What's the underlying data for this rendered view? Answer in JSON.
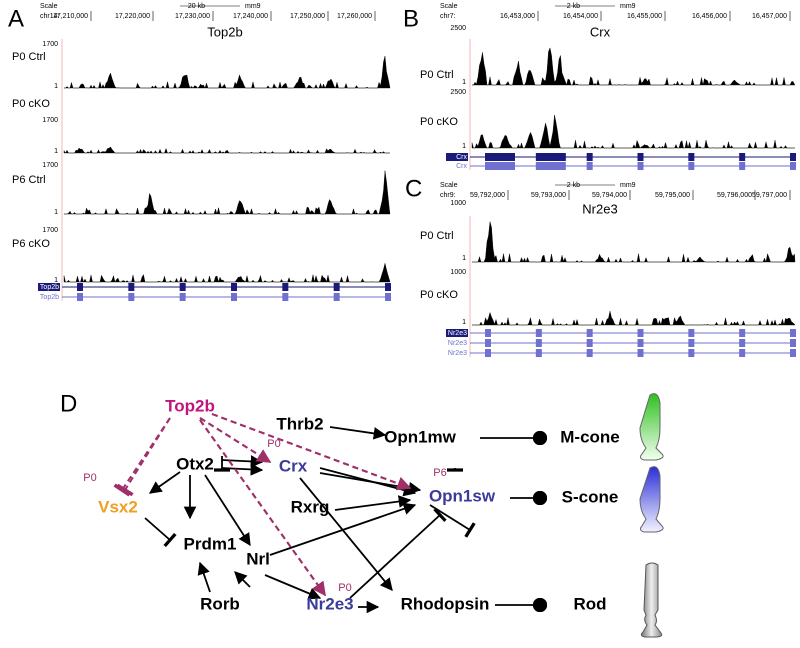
{
  "panels": [
    {
      "letter": "A",
      "scale": "Scale",
      "size": "20 kb",
      "assembly": "mm9",
      "chrom": "chr14:",
      "coords": [
        "17,210,000",
        "17,220,000",
        "17,230,000",
        "17,240,000",
        "17,250,000",
        "17,260,000"
      ],
      "title": "Top2b",
      "tracks": [
        {
          "name": "P0 Ctrl",
          "max": 1700,
          "min": 1
        },
        {
          "name": "P0 cKO",
          "max": 1700,
          "min": 1
        },
        {
          "name": "P6 Ctrl",
          "max": 1700,
          "min": 1
        },
        {
          "name": "P6 cKO",
          "max": 1700,
          "min": 1
        }
      ],
      "genes": [
        "Top2b",
        "Top2b"
      ]
    },
    {
      "letter": "B",
      "scale": "Scale",
      "size": "2 kb",
      "assembly": "mm9",
      "chrom": "chr7:",
      "coords": [
        "16,453,000",
        "16,454,000",
        "16,455,000",
        "16,456,000",
        "16,457,000"
      ],
      "title": "Crx",
      "tracks": [
        {
          "name": "P0 Ctrl",
          "max": 2500,
          "min": 1
        },
        {
          "name": "P0 cKO",
          "max": 2500,
          "min": 1
        }
      ],
      "genes": [
        "Crx",
        "Crx"
      ]
    },
    {
      "letter": "C",
      "scale": "Scale",
      "size": "2 kb",
      "assembly": "mm9",
      "chrom": "chr9:",
      "coords": [
        "59,792,000",
        "59,793,000",
        "59,794,000",
        "59,795,000",
        "59,796,000",
        "59,797,000"
      ],
      "title": "Nr2e3",
      "tracks": [
        {
          "name": "P0 Ctrl",
          "max": 1000,
          "min": 1
        },
        {
          "name": "P0 cKO",
          "max": 1000,
          "min": 1
        }
      ],
      "genes": [
        "Nr2e3",
        "Nr2e3",
        "Nr2e3"
      ]
    }
  ],
  "network": {
    "letter": "D",
    "nodes": [
      "Top2b",
      "Thrb2",
      "Opn1mw",
      "M-cone",
      "Otx2",
      "Crx",
      "Opn1sw",
      "S-cone",
      "Vsx2",
      "Rxrg",
      "Prdm1",
      "Nrl",
      "Rorb",
      "Nr2e3",
      "Rhodopsin",
      "Rod"
    ],
    "edge_labels": [
      "P0",
      "P0",
      "P6",
      "P0"
    ]
  }
}
